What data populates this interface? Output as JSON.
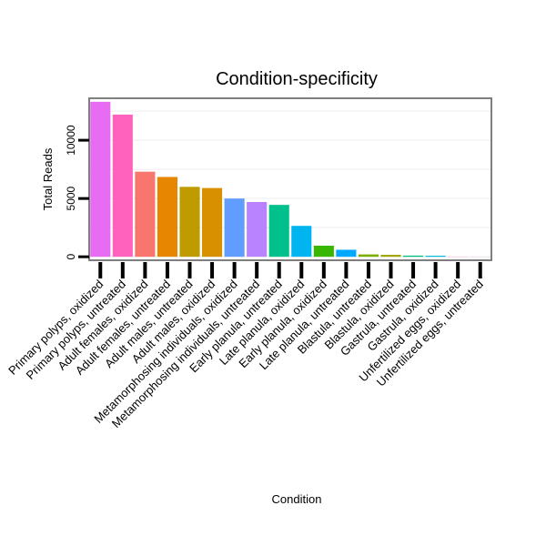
{
  "chart_data": {
    "type": "bar",
    "title": "Condition-specificity",
    "xlabel": "Condition",
    "ylabel": "Total Reads",
    "ylim": [
      -300,
      13600
    ],
    "yticks": [
      0,
      5000,
      10000
    ],
    "ytick_labels": [
      "0",
      "5000",
      "10000"
    ],
    "categories": [
      "Primary polyps, oxidized",
      "Primary polyps, untreated",
      "Adult females, oxidized",
      "Adult females, untreated",
      "Adult males, untreated",
      "Adult males, oxidized",
      "Metamorphosing individuals, oxidized",
      "Metamorphosing individuals, untreated",
      "Early planula, untreated",
      "Late planula, oxidized",
      "Early planula, oxidized",
      "Late planula, untreated",
      "Blastula, untreated",
      "Blastula, oxidized",
      "Gastrula, untreated",
      "Gastrula, oxidized",
      "Unfertilized eggs, oxidized",
      "Unfertilized eggs, untreated"
    ],
    "values": [
      13300,
      12200,
      7300,
      6850,
      6000,
      5900,
      5000,
      4700,
      4450,
      2650,
      950,
      600,
      200,
      170,
      100,
      90,
      15,
      10
    ],
    "colors": [
      "#E76BF3",
      "#FF62BC",
      "#F8766D",
      "#E58700",
      "#C09B00",
      "#D89000",
      "#619CFF",
      "#B983FF",
      "#00C08B",
      "#00B4EF",
      "#39B600",
      "#00A9FF",
      "#7CAE00",
      "#A3A500",
      "#00BF7D",
      "#00BCD8",
      "#FD61D1",
      "#E36EF6"
    ],
    "grid": true
  }
}
